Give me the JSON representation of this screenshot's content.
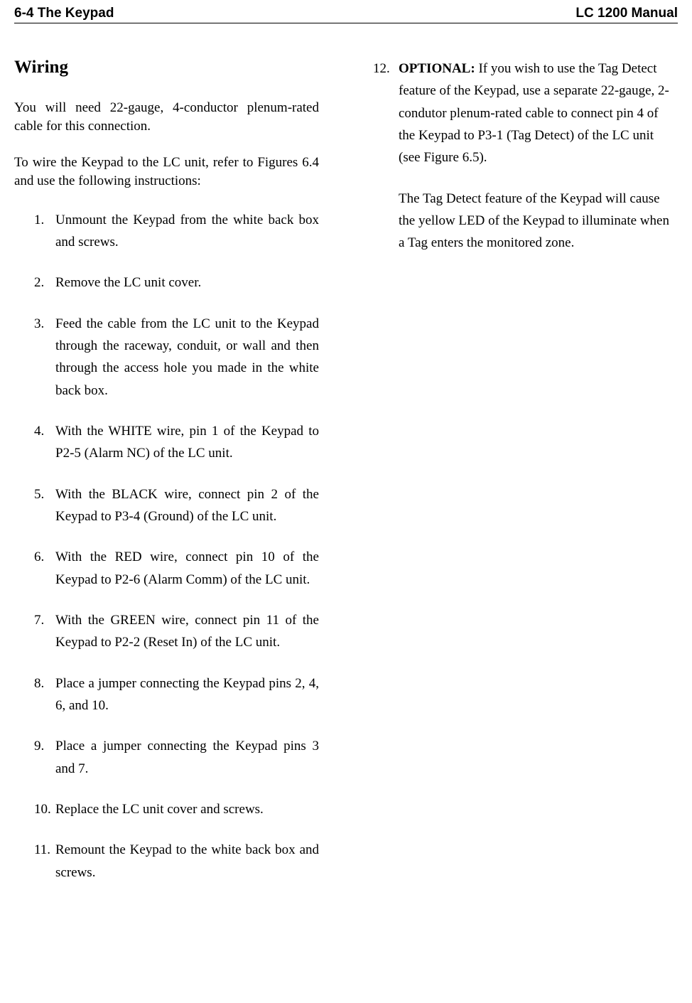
{
  "header": {
    "left": "6-4 The Keypad",
    "right": "LC 1200 Manual"
  },
  "section_title": "Wiring",
  "intro_paragraphs": {
    "p1": "You will need 22-gauge, 4-conductor plenum-rated cable for this connection.",
    "p2": "To wire the Keypad to the LC unit, refer to Figures 6.4 and use the following instructions:"
  },
  "list": {
    "items": [
      {
        "num": "1.",
        "text": "Unmount the Keypad from the white back box and screws."
      },
      {
        "num": "2.",
        "text": "Remove the LC unit cover."
      },
      {
        "num": "3.",
        "text": "Feed the cable from the LC unit to the Keypad through the raceway, conduit, or wall and then through the access hole you made in the white back box."
      },
      {
        "num": "4.",
        "text": "With the WHITE wire, pin 1 of the Keypad to P2-5 (Alarm NC) of the LC unit."
      },
      {
        "num": "5.",
        "text": "With the BLACK wire, connect pin 2 of the Keypad to P3-4 (Ground) of the LC unit."
      },
      {
        "num": "6.",
        "text": "With the RED wire, connect pin 10 of the Keypad to P2-6 (Alarm Comm) of the LC unit."
      },
      {
        "num": "7.",
        "text": "With the GREEN wire, connect pin 11 of the Keypad to P2-2 (Reset In) of the LC unit."
      },
      {
        "num": "8.",
        "text": "Place a jumper connecting the Keypad pins 2, 4, 6, and 10."
      },
      {
        "num": "9.",
        "text": "Place a jumper connecting the Keypad pins 3 and 7."
      },
      {
        "num": "10.",
        "text": "Replace the LC unit cover and screws."
      },
      {
        "num": "11.",
        "text": "Remount the Keypad to the white back box and screws."
      }
    ]
  },
  "right_item": {
    "num": "12.",
    "bold_label": "OPTIONAL:",
    "text_after": " If you wish to use the Tag Detect feature of the Keypad, use a separate 22-gauge, 2-condutor plenum-rated cable to connect pin 4 of the Keypad to P3-1 (Tag Detect) of the LC unit (see Figure 6.5).",
    "follow": "The Tag Detect feature of the Keypad will cause the yellow LED of the Keypad to illuminate when a Tag enters the monitored zone."
  },
  "styling": {
    "background_color": "#ffffff",
    "text_color": "#000000",
    "header_font": "Arial",
    "body_font": "Times New Roman",
    "header_fontsize": 19,
    "title_fontsize": 25,
    "body_fontsize": 19,
    "line_height": 1.65
  }
}
